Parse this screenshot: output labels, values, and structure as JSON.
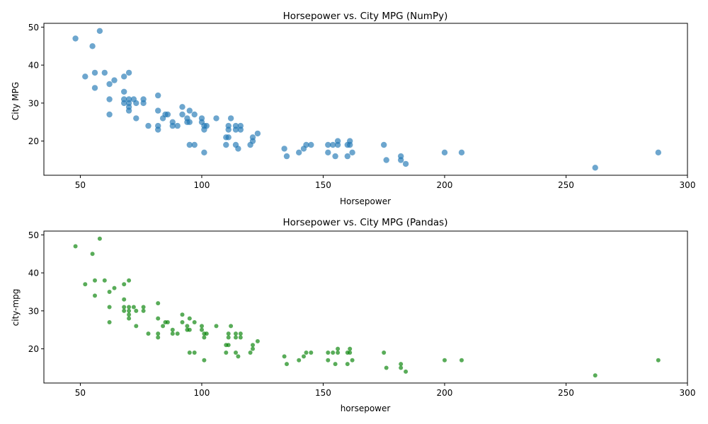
{
  "chart_data": [
    {
      "type": "scatter",
      "title": "Horsepower vs. City MPG (NumPy)",
      "xlabel": "Horsepower",
      "ylabel": "City MPG",
      "xlim": [
        35,
        300
      ],
      "ylim": [
        11,
        51
      ],
      "xticks": [
        50,
        100,
        150,
        200,
        250,
        300
      ],
      "yticks": [
        20,
        30,
        40,
        50
      ],
      "grid": false,
      "color": "#1f77b4",
      "marker_size": "large",
      "points": [
        [
          48,
          47
        ],
        [
          58,
          49
        ],
        [
          55,
          45
        ],
        [
          52,
          37
        ],
        [
          56,
          38
        ],
        [
          60,
          38
        ],
        [
          70,
          38
        ],
        [
          68,
          37
        ],
        [
          56,
          34
        ],
        [
          64,
          36
        ],
        [
          62,
          35
        ],
        [
          68,
          33
        ],
        [
          62,
          31
        ],
        [
          62,
          27
        ],
        [
          68,
          31
        ],
        [
          68,
          30
        ],
        [
          70,
          31
        ],
        [
          70,
          30
        ],
        [
          70,
          29
        ],
        [
          70,
          28
        ],
        [
          72,
          31
        ],
        [
          73,
          30
        ],
        [
          76,
          31
        ],
        [
          76,
          30
        ],
        [
          73,
          26
        ],
        [
          82,
          32
        ],
        [
          82,
          28
        ],
        [
          78,
          24
        ],
        [
          82,
          24
        ],
        [
          82,
          23
        ],
        [
          84,
          26
        ],
        [
          85,
          27
        ],
        [
          86,
          27
        ],
        [
          88,
          25
        ],
        [
          88,
          24
        ],
        [
          90,
          24
        ],
        [
          92,
          29
        ],
        [
          92,
          27
        ],
        [
          94,
          26
        ],
        [
          94,
          25
        ],
        [
          95,
          28
        ],
        [
          95,
          25
        ],
        [
          95,
          19
        ],
        [
          97,
          27
        ],
        [
          97,
          19
        ],
        [
          100,
          26
        ],
        [
          100,
          25
        ],
        [
          101,
          24
        ],
        [
          101,
          23
        ],
        [
          102,
          24
        ],
        [
          101,
          17
        ],
        [
          106,
          26
        ],
        [
          110,
          21
        ],
        [
          111,
          24
        ],
        [
          111,
          23
        ],
        [
          111,
          21
        ],
        [
          110,
          19
        ],
        [
          112,
          26
        ],
        [
          114,
          24
        ],
        [
          114,
          23
        ],
        [
          114,
          19
        ],
        [
          116,
          24
        ],
        [
          116,
          23
        ],
        [
          115,
          18
        ],
        [
          120,
          19
        ],
        [
          121,
          21
        ],
        [
          121,
          20
        ],
        [
          123,
          22
        ],
        [
          134,
          18
        ],
        [
          135,
          16
        ],
        [
          140,
          17
        ],
        [
          142,
          18
        ],
        [
          143,
          19
        ],
        [
          145,
          19
        ],
        [
          152,
          19
        ],
        [
          152,
          17
        ],
        [
          154,
          19
        ],
        [
          155,
          16
        ],
        [
          156,
          20
        ],
        [
          156,
          19
        ],
        [
          160,
          19
        ],
        [
          160,
          16
        ],
        [
          161,
          20
        ],
        [
          161,
          19
        ],
        [
          162,
          17
        ],
        [
          175,
          19
        ],
        [
          176,
          15
        ],
        [
          182,
          16
        ],
        [
          182,
          15
        ],
        [
          184,
          14
        ],
        [
          200,
          17
        ],
        [
          207,
          17
        ],
        [
          262,
          13
        ],
        [
          288,
          17
        ]
      ]
    },
    {
      "type": "scatter",
      "title": "Horsepower vs. City MPG (Pandas)",
      "xlabel": "horsepower",
      "ylabel": "city-mpg",
      "xlim": [
        35,
        300
      ],
      "ylim": [
        11,
        51
      ],
      "xticks": [
        50,
        100,
        150,
        200,
        250,
        300
      ],
      "yticks": [
        20,
        30,
        40,
        50
      ],
      "grid": false,
      "color": "#008000",
      "marker_size": "small",
      "points": [
        [
          48,
          47
        ],
        [
          58,
          49
        ],
        [
          55,
          45
        ],
        [
          52,
          37
        ],
        [
          56,
          38
        ],
        [
          60,
          38
        ],
        [
          70,
          38
        ],
        [
          68,
          37
        ],
        [
          56,
          34
        ],
        [
          64,
          36
        ],
        [
          62,
          35
        ],
        [
          68,
          33
        ],
        [
          62,
          31
        ],
        [
          62,
          27
        ],
        [
          68,
          31
        ],
        [
          68,
          30
        ],
        [
          70,
          31
        ],
        [
          70,
          30
        ],
        [
          70,
          29
        ],
        [
          70,
          28
        ],
        [
          72,
          31
        ],
        [
          73,
          30
        ],
        [
          76,
          31
        ],
        [
          76,
          30
        ],
        [
          73,
          26
        ],
        [
          82,
          32
        ],
        [
          82,
          28
        ],
        [
          78,
          24
        ],
        [
          82,
          24
        ],
        [
          82,
          23
        ],
        [
          84,
          26
        ],
        [
          85,
          27
        ],
        [
          86,
          27
        ],
        [
          88,
          25
        ],
        [
          88,
          24
        ],
        [
          90,
          24
        ],
        [
          92,
          29
        ],
        [
          92,
          27
        ],
        [
          94,
          26
        ],
        [
          94,
          25
        ],
        [
          95,
          28
        ],
        [
          95,
          25
        ],
        [
          95,
          19
        ],
        [
          97,
          27
        ],
        [
          97,
          19
        ],
        [
          100,
          26
        ],
        [
          100,
          25
        ],
        [
          101,
          24
        ],
        [
          101,
          23
        ],
        [
          102,
          24
        ],
        [
          101,
          17
        ],
        [
          106,
          26
        ],
        [
          110,
          21
        ],
        [
          111,
          24
        ],
        [
          111,
          23
        ],
        [
          111,
          21
        ],
        [
          110,
          19
        ],
        [
          112,
          26
        ],
        [
          114,
          24
        ],
        [
          114,
          23
        ],
        [
          114,
          19
        ],
        [
          116,
          24
        ],
        [
          116,
          23
        ],
        [
          115,
          18
        ],
        [
          120,
          19
        ],
        [
          121,
          21
        ],
        [
          121,
          20
        ],
        [
          123,
          22
        ],
        [
          134,
          18
        ],
        [
          135,
          16
        ],
        [
          140,
          17
        ],
        [
          142,
          18
        ],
        [
          143,
          19
        ],
        [
          145,
          19
        ],
        [
          152,
          19
        ],
        [
          152,
          17
        ],
        [
          154,
          19
        ],
        [
          155,
          16
        ],
        [
          156,
          20
        ],
        [
          156,
          19
        ],
        [
          160,
          19
        ],
        [
          160,
          16
        ],
        [
          161,
          20
        ],
        [
          161,
          19
        ],
        [
          162,
          17
        ],
        [
          175,
          19
        ],
        [
          176,
          15
        ],
        [
          182,
          16
        ],
        [
          182,
          15
        ],
        [
          184,
          14
        ],
        [
          200,
          17
        ],
        [
          207,
          17
        ],
        [
          262,
          13
        ],
        [
          288,
          17
        ]
      ]
    }
  ]
}
